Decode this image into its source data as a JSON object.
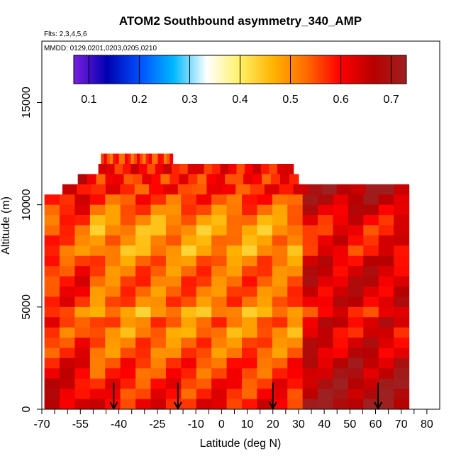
{
  "chart_data": {
    "type": "heatmap",
    "title": "ATOM2 Southbound asymmetry_340_AMP",
    "subtitle_flights": "Flts: 2,3,4,5,6",
    "subtitle_dates": "MMDD: 0129,0201,0203,0205,0210",
    "xlabel": "Latitude (deg N)",
    "ylabel": "Altitude (m)",
    "xlim": [
      -70,
      85
    ],
    "ylim": [
      0,
      18000
    ],
    "x_ticks": [
      -70,
      -65,
      -60,
      -55,
      -50,
      -45,
      -40,
      -35,
      -30,
      -25,
      -20,
      -15,
      -10,
      -5,
      0,
      5,
      10,
      15,
      20,
      25,
      30,
      35,
      40,
      45,
      50,
      55,
      60,
      65,
      70,
      75,
      80
    ],
    "x_tick_labels": [
      "-70",
      "-55",
      "-40",
      "-25",
      "-10",
      "0",
      "10",
      "20",
      "30",
      "40",
      "50",
      "60",
      "70",
      "80"
    ],
    "x_tick_label_values": [
      -70,
      -55,
      -40,
      -25,
      -10,
      0,
      10,
      20,
      30,
      40,
      50,
      60,
      70,
      80
    ],
    "y_ticks": [
      0,
      5000,
      10000,
      15000
    ],
    "y_tick_labels": [
      "0",
      "5000",
      "10000",
      "15000"
    ],
    "colorbar": {
      "min": 0.07,
      "max": 0.73,
      "ticks": [
        0.1,
        0.2,
        0.3,
        0.4,
        0.5,
        0.6,
        0.7
      ],
      "tick_labels": [
        "0.1",
        "0.2",
        "0.3",
        "0.4",
        "0.5",
        "0.6",
        "0.7"
      ],
      "colors": [
        "#7a1fe0",
        "#0000b0",
        "#0050ff",
        "#00b8ff",
        "#ffffff",
        "#fff066",
        "#ffb300",
        "#ff6a00",
        "#ff0000",
        "#b80000",
        "#9e2020"
      ]
    },
    "layers": [
      {
        "alt": 12000,
        "x_range": [
          -47,
          -19
        ],
        "value": 0.58
      },
      {
        "alt": 11500,
        "x_range": [
          -48,
          28
        ],
        "value": 0.62
      },
      {
        "alt": 11000,
        "x_range": [
          -56,
          30
        ],
        "value": 0.6
      },
      {
        "alt": 10500,
        "x_range": [
          -62,
          73
        ],
        "value": 0.6
      },
      {
        "alt": 10000,
        "x_range": [
          -69,
          73
        ],
        "value": 0.58
      },
      {
        "alt": 9500,
        "x_range": [
          -69,
          73
        ],
        "value": 0.55
      },
      {
        "alt": 9000,
        "x_range": [
          -69,
          73
        ],
        "value": 0.52
      },
      {
        "alt": 8500,
        "x_range": [
          -69,
          73
        ],
        "value": 0.5
      },
      {
        "alt": 8000,
        "x_range": [
          -69,
          73
        ],
        "value": 0.52
      },
      {
        "alt": 7500,
        "x_range": [
          -69,
          73
        ],
        "value": 0.5
      },
      {
        "alt": 7000,
        "x_range": [
          -69,
          73
        ],
        "value": 0.54
      },
      {
        "alt": 6500,
        "x_range": [
          -69,
          73
        ],
        "value": 0.55
      },
      {
        "alt": 6000,
        "x_range": [
          -69,
          73
        ],
        "value": 0.56
      },
      {
        "alt": 5500,
        "x_range": [
          -69,
          73
        ],
        "value": 0.55
      },
      {
        "alt": 5000,
        "x_range": [
          -69,
          73
        ],
        "value": 0.55
      },
      {
        "alt": 4500,
        "x_range": [
          -69,
          73
        ],
        "value": 0.5
      },
      {
        "alt": 4000,
        "x_range": [
          -69,
          73
        ],
        "value": 0.55
      },
      {
        "alt": 3500,
        "x_range": [
          -69,
          73
        ],
        "value": 0.52
      },
      {
        "alt": 3000,
        "x_range": [
          -69,
          73
        ],
        "value": 0.55
      },
      {
        "alt": 2500,
        "x_range": [
          -69,
          73
        ],
        "value": 0.55
      },
      {
        "alt": 2000,
        "x_range": [
          -69,
          73
        ],
        "value": 0.58
      },
      {
        "alt": 1500,
        "x_range": [
          -69,
          73
        ],
        "value": 0.58
      },
      {
        "alt": 1000,
        "x_range": [
          -69,
          73
        ],
        "value": 0.6
      },
      {
        "alt": 500,
        "x_range": [
          -69,
          73
        ],
        "value": 0.6
      },
      {
        "alt": 0,
        "x_range": [
          -69,
          73
        ],
        "value": 0.62
      }
    ],
    "arrows_latitude": [
      -42,
      -17,
      20,
      61
    ]
  }
}
